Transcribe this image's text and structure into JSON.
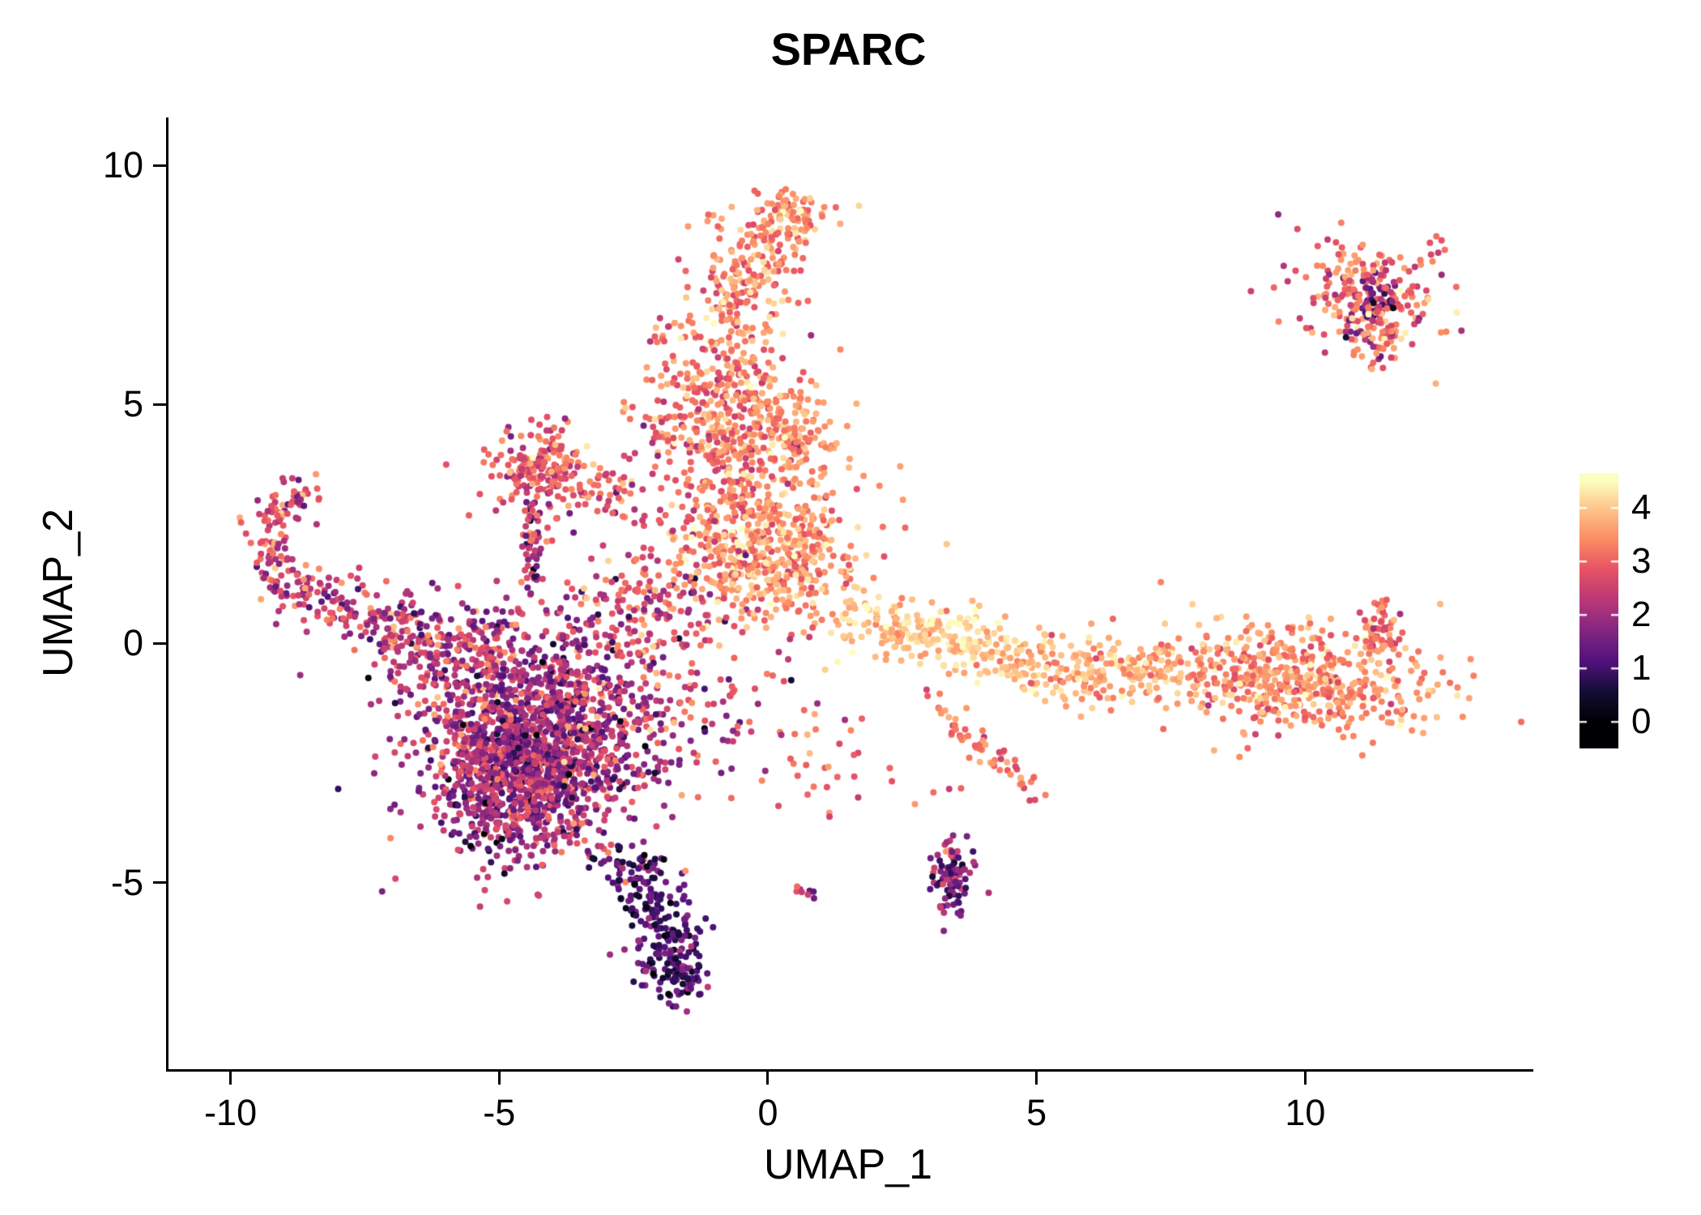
{
  "title": "SPARC",
  "axes": {
    "x_label": "UMAP_1",
    "y_label": "UMAP_2"
  },
  "chart_data": {
    "type": "scatter",
    "title": "SPARC",
    "xlabel": "UMAP_1",
    "ylabel": "UMAP_2",
    "xlim": [
      -11.2,
      14.2
    ],
    "ylim": [
      -8.9,
      11.0
    ],
    "x_ticks": [
      -10,
      -5,
      0,
      5,
      10
    ],
    "y_ticks": [
      -5,
      0,
      5,
      10
    ],
    "grid": false,
    "legend": {
      "type": "colorbar",
      "position": "right",
      "vmin": 0,
      "vmax": 4.5,
      "ticks": [
        0,
        1,
        2,
        3,
        4
      ]
    },
    "colormap": {
      "name": "magma",
      "stops": [
        [
          0.0,
          "#000004"
        ],
        [
          0.13,
          "#140e36"
        ],
        [
          0.25,
          "#51127c"
        ],
        [
          0.38,
          "#822681"
        ],
        [
          0.5,
          "#b73779"
        ],
        [
          0.63,
          "#e65164"
        ],
        [
          0.75,
          "#fb8861"
        ],
        [
          0.88,
          "#fec287"
        ],
        [
          1.0,
          "#fcfdbf"
        ]
      ]
    },
    "point_radius_px": 4.0,
    "clusters": [
      {
        "name": "main-left",
        "type": "gauss",
        "cx": -4.3,
        "cy": -1.9,
        "sx": 1.1,
        "sy": 1.2,
        "rot": -0.5,
        "n": 1400,
        "expr_mean": 2.1,
        "expr_sd": 0.75
      },
      {
        "name": "main-left-core",
        "type": "gauss",
        "cx": -4.6,
        "cy": -2.8,
        "sx": 0.7,
        "sy": 0.8,
        "rot": -0.4,
        "n": 500,
        "expr_mean": 1.9,
        "expr_sd": 0.6
      },
      {
        "name": "left-top-spur",
        "type": "gauss",
        "cx": -6.0,
        "cy": -0.2,
        "sx": 0.8,
        "sy": 0.5,
        "rot": 0.3,
        "n": 150,
        "expr_mean": 2.3,
        "expr_sd": 0.6
      },
      {
        "name": "bottom-tail",
        "type": "path",
        "pts": [
          [
            -2.6,
            -4.6
          ],
          [
            -2.0,
            -5.6
          ],
          [
            -1.8,
            -6.6
          ],
          [
            -1.7,
            -7.3
          ]
        ],
        "jx": 0.35,
        "jy": 0.25,
        "n": 260,
        "expr_mean": 1.1,
        "expr_sd": 0.5
      },
      {
        "name": "left-arm",
        "type": "path",
        "pts": [
          [
            -9.3,
            1.4
          ],
          [
            -8.3,
            1.0
          ],
          [
            -7.2,
            0.4
          ],
          [
            -6.3,
            -0.1
          ]
        ],
        "jx": 0.3,
        "jy": 0.3,
        "n": 200,
        "expr_mean": 2.5,
        "expr_sd": 0.7
      },
      {
        "name": "left-hook",
        "type": "path",
        "pts": [
          [
            -9.3,
            1.6
          ],
          [
            -9.4,
            2.4
          ],
          [
            -9.0,
            3.0
          ],
          [
            -8.5,
            3.2
          ]
        ],
        "jx": 0.2,
        "jy": 0.2,
        "n": 90,
        "expr_mean": 2.6,
        "expr_sd": 0.7
      },
      {
        "name": "tri-cluster",
        "type": "gauss",
        "cx": -4.35,
        "cy": 3.7,
        "sx": 0.45,
        "sy": 0.45,
        "rot": 0.6,
        "n": 170,
        "expr_mean": 2.9,
        "expr_sd": 0.6
      },
      {
        "name": "tri-tail",
        "type": "path",
        "pts": [
          [
            -4.45,
            3.1
          ],
          [
            -4.45,
            2.0
          ],
          [
            -4.4,
            1.1
          ]
        ],
        "jx": 0.1,
        "jy": 0.2,
        "n": 60,
        "expr_mean": 2.2,
        "expr_sd": 0.8
      },
      {
        "name": "tri-spread",
        "type": "path",
        "pts": [
          [
            -4.0,
            3.5
          ],
          [
            -3.2,
            3.1
          ],
          [
            -2.6,
            2.8
          ]
        ],
        "jx": 0.3,
        "jy": 0.3,
        "n": 60,
        "expr_mean": 2.8,
        "expr_sd": 0.6
      },
      {
        "name": "center-lower",
        "type": "gauss",
        "cx": 0.0,
        "cy": 1.9,
        "sx": 0.8,
        "sy": 0.7,
        "rot": 0.2,
        "n": 450,
        "expr_mean": 3.5,
        "expr_sd": 0.45
      },
      {
        "name": "center-mid",
        "type": "gauss",
        "cx": -0.7,
        "cy": 4.6,
        "sx": 0.7,
        "sy": 1.0,
        "rot": 0.1,
        "n": 420,
        "expr_mean": 3.3,
        "expr_sd": 0.5
      },
      {
        "name": "center-mid-right",
        "type": "gauss",
        "cx": 0.55,
        "cy": 4.4,
        "sx": 0.3,
        "sy": 0.35,
        "rot": 0,
        "n": 60,
        "expr_mean": 3.5,
        "expr_sd": 0.4
      },
      {
        "name": "center-upper",
        "type": "path",
        "pts": [
          [
            -0.9,
            6.2
          ],
          [
            -0.6,
            7.4
          ],
          [
            -0.2,
            8.4
          ],
          [
            0.3,
            9.0
          ]
        ],
        "jx": 0.5,
        "jy": 0.35,
        "n": 260,
        "expr_mean": 3.4,
        "expr_sd": 0.5
      },
      {
        "name": "center-top-tip",
        "type": "gauss",
        "cx": 0.4,
        "cy": 9.0,
        "sx": 0.25,
        "sy": 0.25,
        "rot": 0,
        "n": 40,
        "expr_mean": 3.6,
        "expr_sd": 0.5
      },
      {
        "name": "center-scatter",
        "type": "gauss",
        "cx": -0.9,
        "cy": 3.0,
        "sx": 1.3,
        "sy": 1.6,
        "rot": 0.3,
        "n": 160,
        "expr_mean": 3.1,
        "expr_sd": 0.6
      },
      {
        "name": "center-left-sparse",
        "type": "gauss",
        "cx": -2.0,
        "cy": 5.0,
        "sx": 0.5,
        "sy": 0.8,
        "rot": 0,
        "n": 30,
        "expr_mean": 3.0,
        "expr_sd": 0.5
      },
      {
        "name": "bridge",
        "type": "gauss",
        "cx": -2.3,
        "cy": 0.6,
        "sx": 0.8,
        "sy": 0.8,
        "rot": 0,
        "n": 160,
        "expr_mean": 2.6,
        "expr_sd": 0.7
      },
      {
        "name": "band-left",
        "type": "path",
        "pts": [
          [
            1.6,
            0.5
          ],
          [
            2.6,
            0.3
          ],
          [
            3.6,
            0.0
          ],
          [
            4.6,
            -0.4
          ]
        ],
        "jx": 0.4,
        "jy": 0.3,
        "n": 260,
        "expr_mean": 4.0,
        "expr_sd": 0.35
      },
      {
        "name": "band-mid",
        "type": "path",
        "pts": [
          [
            4.8,
            -0.5
          ],
          [
            6.2,
            -0.6
          ],
          [
            7.6,
            -0.6
          ]
        ],
        "jx": 0.5,
        "jy": 0.35,
        "n": 200,
        "expr_mean": 3.8,
        "expr_sd": 0.4
      },
      {
        "name": "band-right",
        "type": "gauss",
        "cx": 9.6,
        "cy": -0.7,
        "sx": 1.3,
        "sy": 0.55,
        "rot": -0.1,
        "n": 550,
        "expr_mean": 3.4,
        "expr_sd": 0.45
      },
      {
        "name": "band-right-hook",
        "type": "path",
        "pts": [
          [
            11.3,
            -0.2
          ],
          [
            11.4,
            0.3
          ],
          [
            11.3,
            0.7
          ]
        ],
        "jx": 0.15,
        "jy": 0.15,
        "n": 60,
        "expr_mean": 3.1,
        "expr_sd": 0.5
      },
      {
        "name": "topright",
        "type": "gauss",
        "cx": 11.1,
        "cy": 7.3,
        "sx": 0.7,
        "sy": 0.5,
        "rot": -0.4,
        "n": 200,
        "expr_mean": 3.1,
        "expr_sd": 0.6
      },
      {
        "name": "topright-dark",
        "type": "gauss",
        "cx": 11.25,
        "cy": 7.15,
        "sx": 0.25,
        "sy": 0.2,
        "rot": 0,
        "n": 40,
        "expr_mean": 1.3,
        "expr_sd": 0.5
      },
      {
        "name": "topright-lower",
        "type": "gauss",
        "cx": 11.3,
        "cy": 6.4,
        "sx": 0.3,
        "sy": 0.3,
        "rot": 0,
        "n": 50,
        "expr_mean": 2.8,
        "expr_sd": 0.8
      },
      {
        "name": "topright-outlier",
        "type": "gauss",
        "cx": 12.4,
        "cy": 8.3,
        "sx": 0.15,
        "sy": 0.1,
        "rot": 0,
        "n": 6,
        "expr_mean": 3.0,
        "expr_sd": 0.3
      },
      {
        "name": "small-dark",
        "type": "gauss",
        "cx": 3.4,
        "cy": -4.8,
        "sx": 0.18,
        "sy": 0.4,
        "rot": 0,
        "n": 90,
        "expr_mean": 1.6,
        "expr_sd": 0.6
      },
      {
        "name": "diag-streak",
        "type": "path",
        "pts": [
          [
            3.0,
            -1.1
          ],
          [
            3.7,
            -1.9
          ],
          [
            4.4,
            -2.6
          ],
          [
            4.95,
            -3.2
          ]
        ],
        "jx": 0.15,
        "jy": 0.15,
        "n": 60,
        "expr_mean": 3.2,
        "expr_sd": 0.4
      },
      {
        "name": "mid-scatter",
        "type": "gauss",
        "cx": 1.4,
        "cy": -2.6,
        "sx": 1.1,
        "sy": 0.6,
        "rot": -0.3,
        "n": 35,
        "expr_mean": 3.0,
        "expr_sd": 0.5
      },
      {
        "name": "tiny-pair",
        "type": "gauss",
        "cx": 0.65,
        "cy": -5.25,
        "sx": 0.12,
        "sy": 0.12,
        "rot": 0,
        "n": 8,
        "expr_mean": 2.4,
        "expr_sd": 0.5
      },
      {
        "name": "sparse-field",
        "type": "gauss",
        "cx": -1.5,
        "cy": -1.5,
        "sx": 1.2,
        "sy": 1.2,
        "rot": 0,
        "n": 80,
        "expr_mean": 2.5,
        "expr_sd": 0.8
      }
    ]
  },
  "colorbar": {
    "tick_labels": [
      "0",
      "1",
      "2",
      "3",
      "4"
    ]
  }
}
